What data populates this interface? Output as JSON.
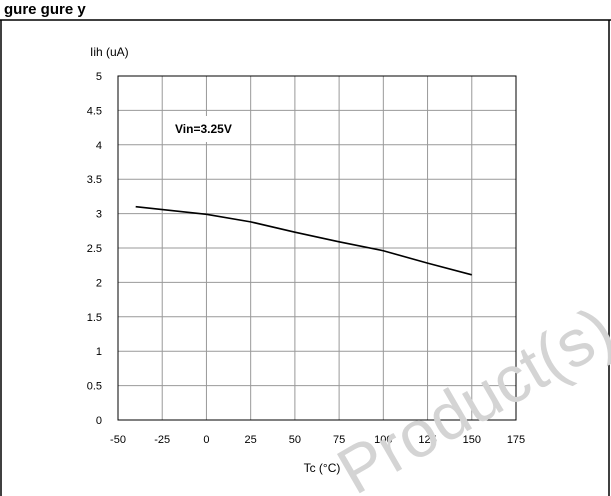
{
  "header_fragment": "gure                   gure                   y",
  "watermark": "Product(s)",
  "colors": {
    "line": "#000000",
    "grid": "#999999",
    "frame": "#000000",
    "watermark": "#d4d4d4"
  },
  "chart_data": {
    "type": "line",
    "title": "",
    "xlabel": "Tc (°C)",
    "ylabel": "Iih (uA)",
    "annotation": "Vin=3.25V",
    "xlim": [
      -50,
      175
    ],
    "ylim": [
      0,
      5
    ],
    "xticks": [
      "-50",
      "-25",
      "0",
      "25",
      "50",
      "75",
      "100",
      "125",
      "150",
      "175"
    ],
    "yticks": [
      "0",
      "0.5",
      "1",
      "1.5",
      "2",
      "2.5",
      "3",
      "3.5",
      "4",
      "4.5",
      "5"
    ],
    "grid": true,
    "series": [
      {
        "x": [
          -40,
          0,
          25,
          50,
          75,
          100,
          125,
          150
        ],
        "y": [
          3.1,
          2.99,
          2.88,
          2.73,
          2.59,
          2.46,
          2.28,
          2.11
        ]
      }
    ]
  }
}
